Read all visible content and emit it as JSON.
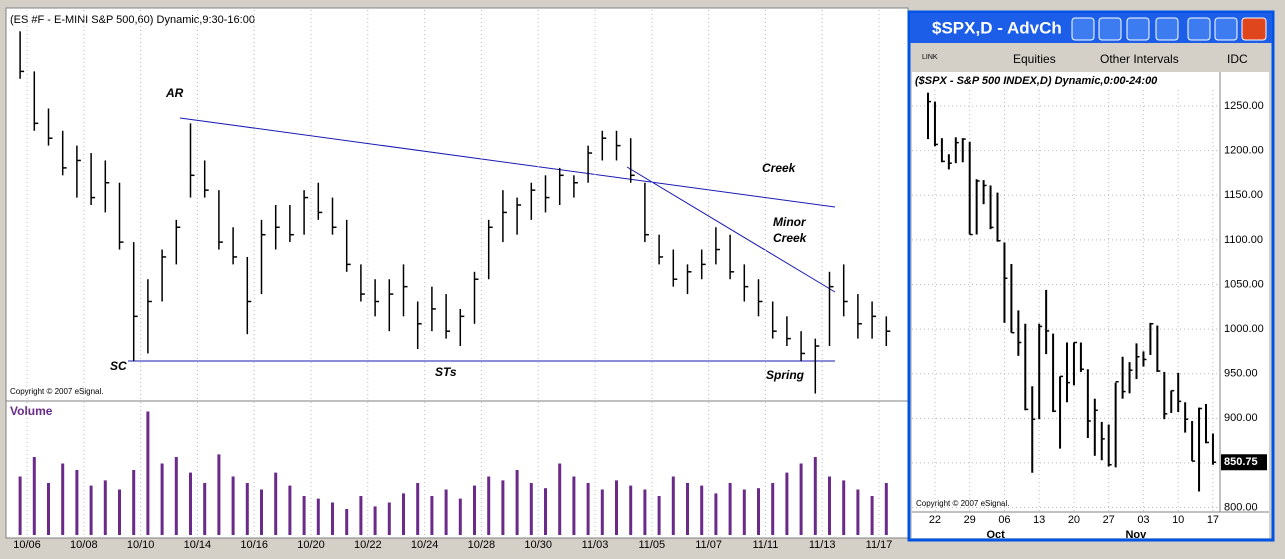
{
  "window": {
    "title": "$SPX,D - AdvCh",
    "link": "LINK",
    "equities": "Equities",
    "intervals": "Other Intervals",
    "source": "IDC"
  },
  "chart_data": [
    {
      "type": "ohlc",
      "title": "(ES #F - E-MINI S&P 500,60) Dynamic,9:30-16:00",
      "categories": [
        "10/06",
        null,
        "10/08",
        null,
        "10/10",
        null,
        "10/14",
        null,
        "10/16",
        null,
        "10/20",
        null,
        "10/22",
        null,
        "10/24",
        null,
        "10/28",
        null,
        "10/30",
        null,
        "11/03",
        null,
        "11/05",
        null,
        "11/07",
        null,
        "11/11",
        null,
        "11/13",
        null,
        "11/17"
      ],
      "ylim": [
        815,
        1075
      ],
      "high": [
        1062,
        1035,
        1010,
        995,
        985,
        980,
        975,
        960,
        920,
        895,
        915,
        935,
        1000,
        975,
        955,
        930,
        910,
        935,
        945,
        945,
        955,
        960,
        950,
        935,
        905,
        895,
        895,
        905,
        880,
        890,
        885,
        875,
        900,
        935,
        955,
        950,
        960,
        965,
        970,
        965,
        985,
        995,
        995,
        990,
        960,
        925,
        915,
        905,
        915,
        930,
        925,
        905,
        895,
        880,
        870,
        860,
        855,
        900,
        905,
        885,
        880,
        870
      ],
      "low": [
        1030,
        995,
        985,
        965,
        950,
        945,
        940,
        915,
        840,
        845,
        880,
        905,
        950,
        950,
        915,
        905,
        858,
        885,
        915,
        920,
        925,
        935,
        925,
        900,
        880,
        870,
        860,
        870,
        848,
        860,
        855,
        850,
        865,
        895,
        920,
        925,
        935,
        940,
        945,
        950,
        960,
        975,
        975,
        960,
        920,
        905,
        890,
        885,
        895,
        905,
        895,
        880,
        870,
        855,
        850,
        840,
        818,
        850,
        870,
        855,
        855,
        850
      ],
      "close": [
        1035,
        1000,
        990,
        970,
        975,
        950,
        960,
        920,
        870,
        880,
        910,
        930,
        965,
        955,
        920,
        910,
        880,
        925,
        930,
        925,
        950,
        940,
        930,
        905,
        885,
        880,
        885,
        890,
        865,
        875,
        860,
        870,
        895,
        930,
        940,
        945,
        955,
        950,
        965,
        960,
        980,
        990,
        985,
        965,
        925,
        910,
        895,
        900,
        905,
        915,
        900,
        890,
        880,
        860,
        855,
        845,
        850,
        890,
        880,
        865,
        870,
        860
      ],
      "volume": {
        "label": "Volume",
        "ylim": [
          0,
          100
        ],
        "values": [
          45,
          60,
          40,
          55,
          50,
          38,
          42,
          35,
          50,
          95,
          55,
          60,
          48,
          40,
          62,
          45,
          40,
          35,
          48,
          38,
          30,
          28,
          25,
          20,
          30,
          22,
          25,
          32,
          40,
          30,
          35,
          28,
          38,
          45,
          42,
          50,
          40,
          36,
          55,
          45,
          40,
          35,
          42,
          38,
          35,
          30,
          45,
          40,
          38,
          32,
          40,
          35,
          36,
          40,
          48,
          55,
          60,
          45,
          42,
          35,
          30,
          40
        ]
      },
      "annotations": [
        "AR",
        "Creek",
        "Minor Creek",
        "SC",
        "STs",
        "Spring"
      ],
      "copyright": "Copyright © 2007 eSignal."
    },
    {
      "type": "ohlc",
      "title": "($SPX - S&P 500 INDEX,D) Dynamic,0:00-24:00",
      "categories": [
        null,
        "22",
        null,
        null,
        null,
        null,
        "29",
        null,
        null,
        null,
        null,
        "06",
        null,
        null,
        null,
        null,
        "13",
        null,
        null,
        null,
        null,
        "20",
        null,
        null,
        null,
        null,
        "27",
        null,
        null,
        null,
        null,
        "03",
        null,
        null,
        null,
        null,
        "10",
        null,
        null,
        null,
        null,
        "17"
      ],
      "months": [
        "Oct",
        "Nov"
      ],
      "ylim": [
        795,
        1268
      ],
      "yticks": [
        {
          "value": 800,
          "label": "800.00"
        },
        {
          "value": 850,
          "label": "850.00"
        },
        {
          "value": 900,
          "label": "900.00"
        },
        {
          "value": 950,
          "label": "950.00"
        },
        {
          "value": 1000,
          "label": "1000.00"
        },
        {
          "value": 1050,
          "label": "1050.00"
        },
        {
          "value": 1100,
          "label": "1100.00"
        },
        {
          "value": 1150,
          "label": "1150.00"
        },
        {
          "value": 1200,
          "label": "1200.00"
        },
        {
          "value": 1250,
          "label": "1250.00"
        }
      ],
      "high": [
        1265,
        1255,
        1214,
        1196,
        1215,
        1214,
        1210,
        1168,
        1167,
        1161,
        1153,
        1097,
        1073,
        1021,
        1006,
        936,
        1006,
        1044,
        995,
        947,
        985,
        985,
        985,
        955,
        922,
        896,
        893,
        940,
        969,
        963,
        984,
        975,
        1007,
        1004,
        952,
        931,
        951,
        918,
        897,
        912,
        916,
        883
      ],
      "low": [
        1213,
        1205,
        1187,
        1179,
        1186,
        1187,
        1106,
        1106,
        1140,
        1112,
        1098,
        1007,
        996,
        970,
        909,
        839,
        899,
        972,
        907,
        866,
        918,
        937,
        952,
        878,
        858,
        853,
        846,
        845,
        922,
        928,
        944,
        958,
        971,
        952,
        899,
        906,
        907,
        884,
        852,
        818,
        872,
        848
      ],
      "close": [
        1255,
        1207,
        1188,
        1186,
        1209,
        1213,
        1106,
        1166,
        1161,
        1114,
        1099,
        1057,
        996,
        985,
        910,
        899,
        1003,
        998,
        908,
        947,
        940,
        985,
        955,
        897,
        909,
        877,
        848,
        941,
        930,
        954,
        969,
        966,
        1006,
        953,
        905,
        931,
        919,
        899,
        852,
        911,
        873,
        850.75
      ],
      "copyright": "Copyright © 2007 eSignal."
    }
  ]
}
